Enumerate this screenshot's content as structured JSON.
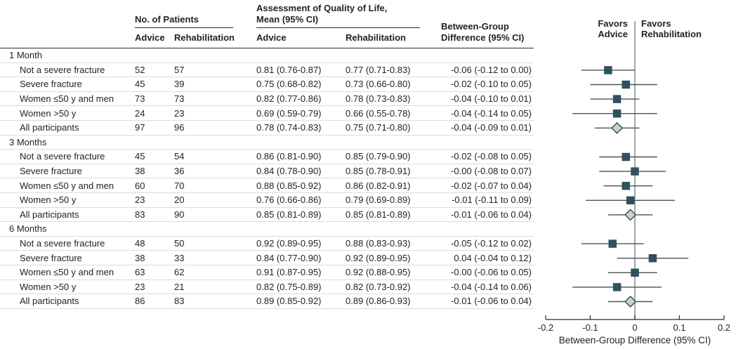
{
  "header": {
    "col_groups": {
      "patients": "No. of Patients",
      "qol_line1": "Assessment of Quality of Life,",
      "qol_line2": "Mean (95% CI)",
      "diff_line1": "Between-Group",
      "diff_line2": "Difference (95% CI)"
    },
    "subheaders": {
      "advice_n": "Advice",
      "rehab_n": "Rehabilitation",
      "advice_mean": "Advice",
      "rehab_mean": "Rehabilitation"
    }
  },
  "plot_header": {
    "favors_left_line1": "Favors",
    "favors_left_line2": "Advice",
    "favors_right_line1": "Favors",
    "favors_right_line2": "Rehabilitation"
  },
  "axis": {
    "title": "Between-Group Difference (95% CI)",
    "tick_labels": [
      "-0.2",
      "-0.1",
      "0",
      "0.1",
      "0.2"
    ]
  },
  "colors": {
    "marker_square": "#2e525e",
    "diamond_fill": "#c8d3d1",
    "diamond_stroke": "#2e3e46",
    "ci_line": "#4d5154",
    "zero_line": "#8d9294",
    "axis_line": "#2b2b2b",
    "text": "#222324"
  },
  "chart_data": {
    "type": "forest",
    "xlabel": "Between-Group Difference (95% CI)",
    "xlim": [
      -0.2,
      0.2
    ],
    "xticks": [
      -0.2,
      -0.1,
      0,
      0.1,
      0.2
    ],
    "legend": {
      "left": "Favors Advice",
      "right": "Favors Rehabilitation"
    },
    "groups": [
      {
        "label": "1 Month",
        "rows": [
          {
            "label": "Not a severe fracture",
            "n_advice": 52,
            "n_rehab": 57,
            "mean_advice": "0.81 (0.76-0.87)",
            "mean_rehab": "0.77 (0.71-0.83)",
            "diff_text": "-0.06 (-0.12 to 0.00)",
            "est": -0.06,
            "lo": -0.12,
            "hi": 0.0,
            "marker": "square"
          },
          {
            "label": "Severe fracture",
            "n_advice": 45,
            "n_rehab": 39,
            "mean_advice": "0.75 (0.68-0.82)",
            "mean_rehab": "0.73 (0.66-0.80)",
            "diff_text": "-0.02 (-0.10 to 0.05)",
            "est": -0.02,
            "lo": -0.1,
            "hi": 0.05,
            "marker": "square"
          },
          {
            "label": "Women ≤50 y and men",
            "n_advice": 73,
            "n_rehab": 73,
            "mean_advice": "0.82 (0.77-0.86)",
            "mean_rehab": "0.78 (0.73-0.83)",
            "diff_text": "-0.04 (-0.10 to 0.01)",
            "est": -0.04,
            "lo": -0.1,
            "hi": 0.01,
            "marker": "square"
          },
          {
            "label": "Women >50 y",
            "n_advice": 24,
            "n_rehab": 23,
            "mean_advice": "0.69 (0.59-0.79)",
            "mean_rehab": "0.66 (0.55-0.78)",
            "diff_text": "-0.04 (-0.14 to 0.05)",
            "est": -0.04,
            "lo": -0.14,
            "hi": 0.05,
            "marker": "square"
          },
          {
            "label": "All participants",
            "n_advice": 97,
            "n_rehab": 96,
            "mean_advice": "0.78 (0.74-0.83)",
            "mean_rehab": "0.75 (0.71-0.80)",
            "diff_text": "-0.04 (-0.09 to 0.01)",
            "est": -0.04,
            "lo": -0.09,
            "hi": 0.01,
            "marker": "diamond"
          }
        ]
      },
      {
        "label": "3 Months",
        "rows": [
          {
            "label": "Not a severe fracture",
            "n_advice": 45,
            "n_rehab": 54,
            "mean_advice": "0.86 (0.81-0.90)",
            "mean_rehab": "0.85 (0.79-0.90)",
            "diff_text": "-0.02 (-0.08 to 0.05)",
            "est": -0.02,
            "lo": -0.08,
            "hi": 0.05,
            "marker": "square"
          },
          {
            "label": "Severe fracture",
            "n_advice": 38,
            "n_rehab": 36,
            "mean_advice": "0.84 (0.78-0.90)",
            "mean_rehab": "0.85 (0.78-0.91)",
            "diff_text": "-0.00 (-0.08 to 0.07)",
            "est": 0.0,
            "lo": -0.08,
            "hi": 0.07,
            "marker": "square"
          },
          {
            "label": "Women ≤50 y and men",
            "n_advice": 60,
            "n_rehab": 70,
            "mean_advice": "0.88 (0.85-0.92)",
            "mean_rehab": "0.86 (0.82-0.91)",
            "diff_text": "-0.02 (-0.07 to 0.04)",
            "est": -0.02,
            "lo": -0.07,
            "hi": 0.04,
            "marker": "square"
          },
          {
            "label": "Women >50 y",
            "n_advice": 23,
            "n_rehab": 20,
            "mean_advice": "0.76 (0.66-0.86)",
            "mean_rehab": "0.79 (0.69-0.89)",
            "diff_text": "-0.01 (-0.11 to 0.09)",
            "est": -0.01,
            "lo": -0.11,
            "hi": 0.09,
            "marker": "square"
          },
          {
            "label": "All participants",
            "n_advice": 83,
            "n_rehab": 90,
            "mean_advice": "0.85 (0.81-0.89)",
            "mean_rehab": "0.85 (0.81-0.89)",
            "diff_text": "-0.01 (-0.06 to 0.04)",
            "est": -0.01,
            "lo": -0.06,
            "hi": 0.04,
            "marker": "diamond"
          }
        ]
      },
      {
        "label": "6 Months",
        "rows": [
          {
            "label": "Not a severe fracture",
            "n_advice": 48,
            "n_rehab": 50,
            "mean_advice": "0.92 (0.89-0.95)",
            "mean_rehab": "0.88 (0.83-0.93)",
            "diff_text": "-0.05 (-0.12 to 0.02)",
            "est": -0.05,
            "lo": -0.12,
            "hi": 0.02,
            "marker": "square"
          },
          {
            "label": "Severe fracture",
            "n_advice": 38,
            "n_rehab": 33,
            "mean_advice": "0.84 (0.77-0.90)",
            "mean_rehab": "0.92 (0.89-0.95)",
            "diff_text": "0.04 (-0.04 to 0.12)",
            "est": 0.04,
            "lo": -0.04,
            "hi": 0.12,
            "marker": "square"
          },
          {
            "label": "Women ≤50 y and men",
            "n_advice": 63,
            "n_rehab": 62,
            "mean_advice": "0.91 (0.87-0.95)",
            "mean_rehab": "0.92 (0.88-0.95)",
            "diff_text": "-0.00 (-0.06 to 0.05)",
            "est": 0.0,
            "lo": -0.06,
            "hi": 0.05,
            "marker": "square"
          },
          {
            "label": "Women >50 y",
            "n_advice": 23,
            "n_rehab": 21,
            "mean_advice": "0.82 (0.75-0.89)",
            "mean_rehab": "0.82 (0.73-0.92)",
            "diff_text": "-0.04 (-0.14 to 0.06)",
            "est": -0.04,
            "lo": -0.14,
            "hi": 0.06,
            "marker": "square"
          },
          {
            "label": "All participants",
            "n_advice": 86,
            "n_rehab": 83,
            "mean_advice": "0.89 (0.85-0.92)",
            "mean_rehab": "0.89 (0.86-0.93)",
            "diff_text": "-0.01 (-0.06 to 0.04)",
            "est": -0.01,
            "lo": -0.06,
            "hi": 0.04,
            "marker": "diamond"
          }
        ]
      }
    ]
  }
}
